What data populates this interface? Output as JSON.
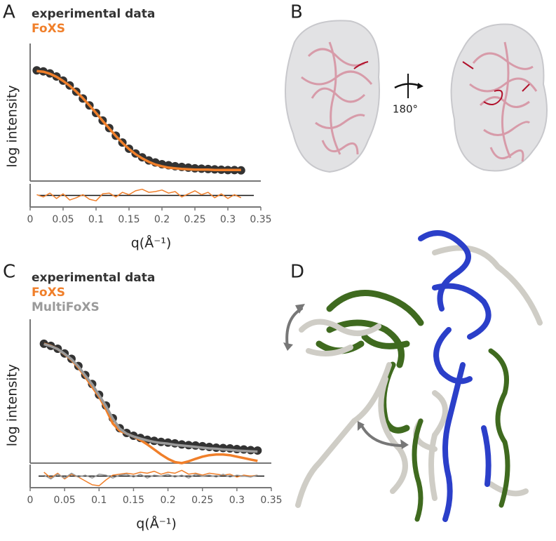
{
  "panel_labels": [
    "A",
    "B",
    "C",
    "D"
  ],
  "rotation_label": "180°",
  "chart_data": [
    {
      "type": "line",
      "xlabel": "",
      "ylabel": "log intensity",
      "xlim": [
        0,
        0.35
      ],
      "ylim": [
        0,
        4
      ],
      "x": [
        0.01,
        0.02,
        0.03,
        0.04,
        0.05,
        0.06,
        0.07,
        0.08,
        0.09,
        0.1,
        0.11,
        0.12,
        0.13,
        0.14,
        0.15,
        0.16,
        0.17,
        0.18,
        0.19,
        0.2,
        0.21,
        0.22,
        0.23,
        0.24,
        0.25,
        0.26,
        0.27,
        0.28,
        0.29,
        0.3,
        0.31,
        0.32
      ],
      "series": [
        {
          "name": "experimental data",
          "color": "#333333",
          "mode": "markers",
          "values": [
            3.22,
            3.19,
            3.13,
            3.04,
            2.92,
            2.78,
            2.6,
            2.4,
            2.2,
            1.98,
            1.76,
            1.54,
            1.32,
            1.12,
            0.94,
            0.8,
            0.69,
            0.6,
            0.54,
            0.49,
            0.46,
            0.43,
            0.41,
            0.39,
            0.37,
            0.36,
            0.35,
            0.34,
            0.33,
            0.32,
            0.32,
            0.31
          ]
        },
        {
          "name": "FoXS",
          "color": "#f07f2a",
          "mode": "line",
          "values": [
            3.2,
            3.18,
            3.12,
            3.03,
            2.91,
            2.77,
            2.6,
            2.41,
            2.2,
            1.98,
            1.75,
            1.53,
            1.31,
            1.11,
            0.93,
            0.78,
            0.66,
            0.56,
            0.48,
            0.43,
            0.39,
            0.37,
            0.35,
            0.34,
            0.33,
            0.33,
            0.33,
            0.32,
            0.32,
            0.32,
            0.32,
            0.32
          ]
        }
      ]
    },
    {
      "type": "line",
      "xlabel": "q(Å⁻¹)",
      "xlim": [
        0,
        0.35
      ],
      "ylim": [
        -1.5,
        1.5
      ],
      "xticks": [
        0,
        0.05,
        0.1,
        0.15,
        0.2,
        0.25,
        0.3,
        0.35
      ],
      "x": [
        0.01,
        0.02,
        0.03,
        0.04,
        0.05,
        0.06,
        0.07,
        0.08,
        0.09,
        0.1,
        0.11,
        0.12,
        0.13,
        0.14,
        0.15,
        0.16,
        0.17,
        0.18,
        0.19,
        0.2,
        0.21,
        0.22,
        0.23,
        0.24,
        0.25,
        0.26,
        0.27,
        0.28,
        0.29,
        0.3,
        0.31,
        0.32
      ],
      "series": [
        {
          "color": "#f07f2a",
          "mode": "line",
          "values": [
            0.1,
            -0.2,
            0.3,
            -0.4,
            0.2,
            -0.6,
            -0.3,
            0.1,
            -0.5,
            -0.7,
            0.2,
            0.3,
            -0.2,
            0.4,
            0.1,
            0.6,
            0.8,
            0.4,
            0.5,
            0.7,
            0.3,
            0.5,
            -0.2,
            0.2,
            0.6,
            0.1,
            0.4,
            -0.3,
            0.2,
            -0.4,
            0.1,
            -0.3
          ]
        }
      ]
    },
    {
      "type": "line",
      "xlabel": "",
      "ylabel": "log intensity",
      "xlim": [
        0,
        0.35
      ],
      "ylim": [
        0,
        4
      ],
      "x": [
        0.02,
        0.03,
        0.04,
        0.05,
        0.06,
        0.07,
        0.08,
        0.09,
        0.1,
        0.11,
        0.12,
        0.13,
        0.14,
        0.15,
        0.16,
        0.17,
        0.18,
        0.19,
        0.2,
        0.21,
        0.22,
        0.23,
        0.24,
        0.25,
        0.26,
        0.27,
        0.28,
        0.29,
        0.3,
        0.31,
        0.32,
        0.33
      ],
      "series": [
        {
          "name": "experimental data",
          "color": "#333333",
          "mode": "markers",
          "values": [
            3.32,
            3.26,
            3.18,
            3.05,
            2.9,
            2.7,
            2.45,
            2.2,
            1.9,
            1.6,
            1.25,
            0.97,
            0.84,
            0.76,
            0.7,
            0.65,
            0.62,
            0.59,
            0.57,
            0.55,
            0.52,
            0.5,
            0.49,
            0.47,
            0.45,
            0.43,
            0.42,
            0.41,
            0.39,
            0.38,
            0.36,
            0.35
          ]
        },
        {
          "name": "FoXS",
          "color": "#f07f2a",
          "mode": "line",
          "values": [
            3.32,
            3.26,
            3.17,
            3.03,
            2.87,
            2.66,
            2.4,
            2.12,
            1.85,
            1.5,
            1.1,
            0.9,
            0.82,
            0.74,
            0.64,
            0.52,
            0.38,
            0.24,
            0.12,
            0.03,
            0.0,
            0.05,
            0.12,
            0.18,
            0.22,
            0.24,
            0.24,
            0.22,
            0.18,
            0.14,
            0.1,
            0.06
          ]
        },
        {
          "name": "MultiFoXS",
          "color": "#9a9a9a",
          "mode": "line",
          "values": [
            3.31,
            3.25,
            3.17,
            3.04,
            2.89,
            2.69,
            2.44,
            2.19,
            1.89,
            1.59,
            1.24,
            0.96,
            0.82,
            0.74,
            0.68,
            0.63,
            0.59,
            0.56,
            0.54,
            0.51,
            0.49,
            0.47,
            0.45,
            0.43,
            0.41,
            0.4,
            0.38,
            0.37,
            0.35,
            0.34,
            0.33,
            0.32
          ]
        }
      ]
    },
    {
      "type": "line",
      "xlabel": "q(Å⁻¹)",
      "xlim": [
        0,
        0.35
      ],
      "ylim": [
        -1.2,
        1.2
      ],
      "xticks": [
        0,
        0.05,
        0.1,
        0.15,
        0.2,
        0.25,
        0.3,
        0.35
      ],
      "x": [
        0.02,
        0.03,
        0.04,
        0.05,
        0.06,
        0.07,
        0.08,
        0.09,
        0.1,
        0.11,
        0.12,
        0.13,
        0.14,
        0.15,
        0.16,
        0.17,
        0.18,
        0.19,
        0.2,
        0.21,
        0.22,
        0.23,
        0.24,
        0.25,
        0.26,
        0.27,
        0.28,
        0.29,
        0.3,
        0.31,
        0.32,
        0.33
      ],
      "series": [
        {
          "color": "#f07f2a",
          "mode": "line",
          "values": [
            0.4,
            -0.2,
            0.3,
            -0.3,
            0.2,
            -0.1,
            -0.5,
            -0.9,
            -1.0,
            -0.4,
            0.1,
            0.2,
            0.3,
            0.2,
            0.4,
            0.3,
            0.5,
            0.2,
            0.4,
            0.3,
            0.6,
            0.2,
            0.3,
            0.1,
            0.3,
            0.2,
            0.1,
            0.2,
            -0.1,
            0.1,
            0.0,
            0.1
          ]
        },
        {
          "color": "#9a9a9a",
          "mode": "line",
          "values": [
            0.1,
            -0.3,
            0.2,
            -0.2,
            0.3,
            -0.1,
            0.1,
            -0.2,
            0.2,
            0.1,
            -0.2,
            0.1,
            0.2,
            -0.1,
            0.2,
            -0.2,
            0.1,
            0.0,
            0.2,
            -0.1,
            0.1,
            -0.2,
            0.2,
            0.0,
            0.1,
            -0.1,
            0.2,
            -0.1,
            0.1,
            0.0,
            -0.1,
            0.1
          ]
        }
      ]
    }
  ]
}
